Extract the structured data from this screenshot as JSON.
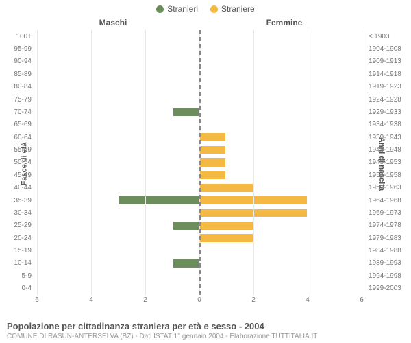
{
  "colors": {
    "male": "#6b8e5a",
    "female": "#f4b942",
    "male_border": "#ffffff",
    "female_border": "#ffffff",
    "grid": "#e8e8e8",
    "center_dash": "#888888",
    "text": "#555555",
    "text_light": "#777777",
    "text_sub": "#999999",
    "background": "#ffffff"
  },
  "legend": {
    "male_label": "Stranieri",
    "female_label": "Straniere"
  },
  "column_titles": {
    "left": "Maschi",
    "right": "Femmine"
  },
  "axis_titles": {
    "left": "Fasce di età",
    "right": "Anni di nascita"
  },
  "chart": {
    "type": "population-pyramid",
    "x_max": 6,
    "x_ticks": [
      6,
      4,
      2,
      0,
      2,
      4,
      6
    ],
    "bar_inset_pct": 13,
    "bar_border_width": 1,
    "label_fontsize": 10,
    "tick_fontsize": 10,
    "legend_fontsize": 12,
    "axis_title_fontsize": 11,
    "rows": [
      {
        "age": "100+",
        "birth": "≤ 1903",
        "m": 0,
        "f": 0
      },
      {
        "age": "95-99",
        "birth": "1904-1908",
        "m": 0,
        "f": 0
      },
      {
        "age": "90-94",
        "birth": "1909-1913",
        "m": 0,
        "f": 0
      },
      {
        "age": "85-89",
        "birth": "1914-1918",
        "m": 0,
        "f": 0
      },
      {
        "age": "80-84",
        "birth": "1919-1923",
        "m": 0,
        "f": 0
      },
      {
        "age": "75-79",
        "birth": "1924-1928",
        "m": 0,
        "f": 0
      },
      {
        "age": "70-74",
        "birth": "1929-1933",
        "m": 1,
        "f": 0
      },
      {
        "age": "65-69",
        "birth": "1934-1938",
        "m": 0,
        "f": 0
      },
      {
        "age": "60-64",
        "birth": "1939-1943",
        "m": 0,
        "f": 1
      },
      {
        "age": "55-59",
        "birth": "1944-1948",
        "m": 0,
        "f": 1
      },
      {
        "age": "50-54",
        "birth": "1949-1953",
        "m": 0,
        "f": 1
      },
      {
        "age": "45-49",
        "birth": "1954-1958",
        "m": 0,
        "f": 1
      },
      {
        "age": "40-44",
        "birth": "1959-1963",
        "m": 0,
        "f": 2
      },
      {
        "age": "35-39",
        "birth": "1964-1968",
        "m": 3,
        "f": 4
      },
      {
        "age": "30-34",
        "birth": "1969-1973",
        "m": 0,
        "f": 4
      },
      {
        "age": "25-29",
        "birth": "1974-1978",
        "m": 1,
        "f": 2
      },
      {
        "age": "20-24",
        "birth": "1979-1983",
        "m": 0,
        "f": 2
      },
      {
        "age": "15-19",
        "birth": "1984-1988",
        "m": 0,
        "f": 0
      },
      {
        "age": "10-14",
        "birth": "1989-1993",
        "m": 1,
        "f": 0
      },
      {
        "age": "5-9",
        "birth": "1994-1998",
        "m": 0,
        "f": 0
      },
      {
        "age": "0-4",
        "birth": "1999-2003",
        "m": 0,
        "f": 0
      }
    ]
  },
  "footer": {
    "title": "Popolazione per cittadinanza straniera per età e sesso - 2004",
    "subtitle": "COMUNE DI RASUN-ANTERSELVA (BZ) - Dati ISTAT 1° gennaio 2004 - Elaborazione TUTTITALIA.IT"
  }
}
